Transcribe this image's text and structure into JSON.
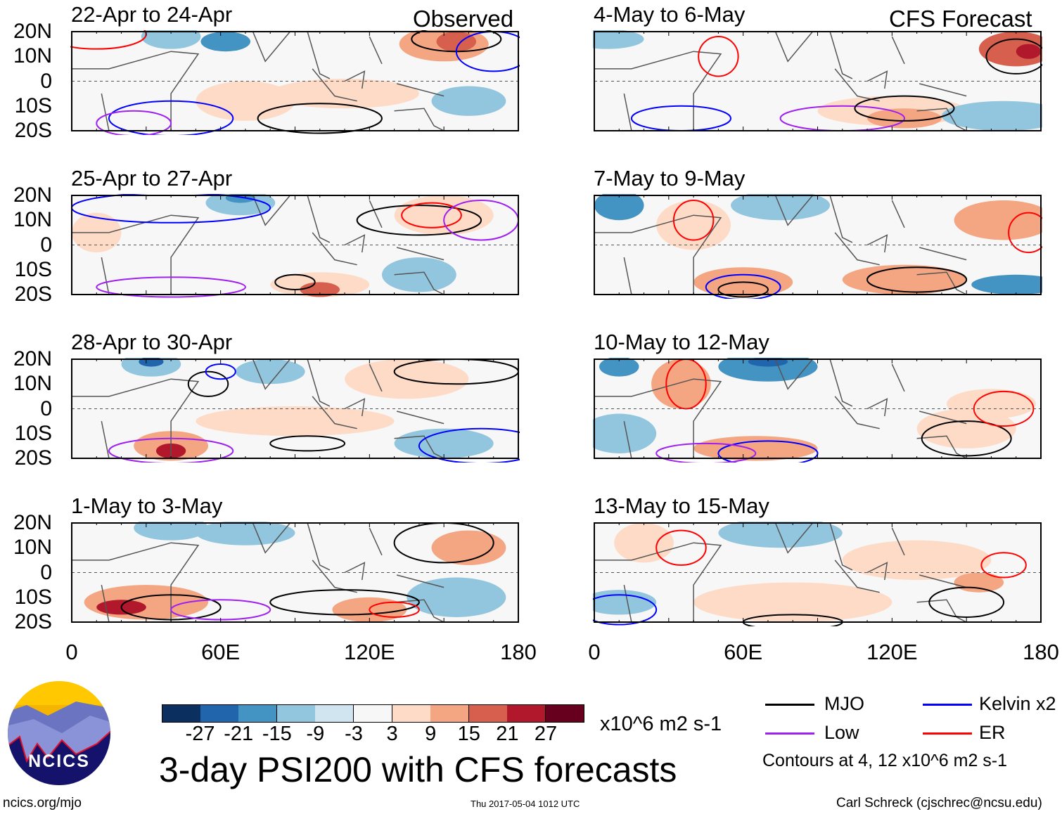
{
  "title": "3-day PSI200 with CFS forecasts",
  "observed_label": "Observed",
  "forecast_label": "CFS Forecast",
  "panels_left": [
    {
      "title": "22-Apr to 24-Apr"
    },
    {
      "title": "25-Apr to 27-Apr"
    },
    {
      "title": "28-Apr to 30-Apr"
    },
    {
      "title": "1-May to 3-May"
    }
  ],
  "panels_right": [
    {
      "title": "4-May to 6-May"
    },
    {
      "title": "7-May to 9-May"
    },
    {
      "title": "10-May to 12-May"
    },
    {
      "title": "13-May to 15-May"
    }
  ],
  "lat_ticks": [
    "20N",
    "10N",
    "0",
    "10S",
    "20S"
  ],
  "lon_ticks": [
    "0",
    "60E",
    "120E",
    "180"
  ],
  "colorbar": {
    "colors": [
      "#0b2f5e",
      "#2166ac",
      "#4393c3",
      "#92c5de",
      "#d1e5f0",
      "#f7f7f7",
      "#fddbc7",
      "#f4a582",
      "#d6604d",
      "#b2182b",
      "#67001f"
    ],
    "labels": [
      "-27",
      "-21",
      "-15",
      "-9",
      "-3",
      "3",
      "9",
      "15",
      "21",
      "27"
    ],
    "units": "x10^6 m2 s-1"
  },
  "legend": [
    {
      "label": "MJO",
      "color": "#000000"
    },
    {
      "label": "Kelvin x2",
      "color": "#0000ff"
    },
    {
      "label": "Low",
      "color": "#a020f0"
    },
    {
      "label": "ER",
      "color": "#ff0000"
    }
  ],
  "contours_note": "Contours at 4, 12 x10^6 m2 s-1",
  "logo_text": "NCICS",
  "footer": {
    "url": "ncics.org/mjo",
    "timestamp": "Thu 2017-05-04 1012 UTC",
    "author": "Carl Schreck (cjschrec@ncsu.edu)"
  }
}
